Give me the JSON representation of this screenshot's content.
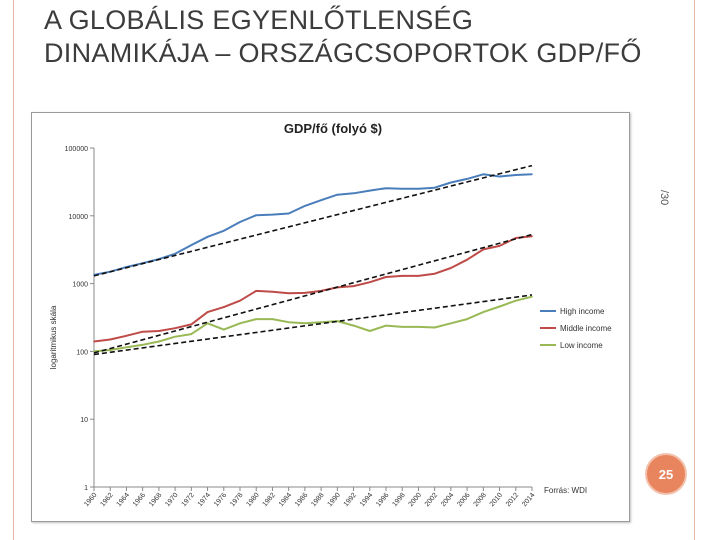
{
  "slide": {
    "title": "A GLOBÁLIS EGYENLŐTLENSÉG DINAMIKÁJA – ORSZÁGCSOPORTOK GDP/FŐ",
    "side_number": "/30",
    "page_number": "25"
  },
  "chart_data": {
    "type": "line",
    "title": "GDP/fő (folyó $)",
    "ylabel": "logaritmikus skála",
    "xlabel": "",
    "yscale": "log",
    "ylim": [
      1,
      100000
    ],
    "yticks": [
      "1",
      "10",
      "100",
      "1000",
      "10000",
      "100000"
    ],
    "xlim": [
      1960,
      2014
    ],
    "xticks": [
      "1960",
      "1962",
      "1964",
      "1966",
      "1968",
      "1970",
      "1972",
      "1974",
      "1976",
      "1978",
      "1980",
      "1982",
      "1984",
      "1986",
      "1988",
      "1990",
      "1992",
      "1994",
      "1996",
      "1998",
      "2000",
      "2002",
      "2004",
      "2006",
      "2008",
      "2010",
      "2012",
      "2014"
    ],
    "source": "Forrás: WDI",
    "legend_position": "right",
    "x": [
      1960,
      1962,
      1964,
      1966,
      1968,
      1970,
      1972,
      1974,
      1976,
      1978,
      1980,
      1982,
      1984,
      1986,
      1988,
      1990,
      1992,
      1994,
      1996,
      1998,
      2000,
      2002,
      2004,
      2006,
      2008,
      2010,
      2012,
      2014
    ],
    "series": [
      {
        "name": "High income",
        "color": "#4a7ebb",
        "values": [
          1350,
          1500,
          1750,
          2000,
          2300,
          2750,
          3700,
          4900,
          6000,
          8100,
          10200,
          10400,
          10800,
          14000,
          17000,
          20500,
          21500,
          23500,
          25500,
          25000,
          25000,
          26000,
          31000,
          35000,
          41000,
          38000,
          40000,
          41000
        ]
      },
      {
        "name": "Middle income",
        "color": "#be4b48",
        "values": [
          140,
          150,
          170,
          195,
          200,
          220,
          250,
          380,
          450,
          560,
          780,
          760,
          720,
          730,
          780,
          880,
          920,
          1050,
          1250,
          1300,
          1300,
          1400,
          1700,
          2250,
          3200,
          3600,
          4700,
          5000
        ]
      },
      {
        "name": "Low income",
        "color": "#98b954",
        "values": [
          100,
          105,
          115,
          125,
          140,
          165,
          180,
          260,
          210,
          260,
          300,
          300,
          270,
          260,
          270,
          280,
          240,
          200,
          240,
          230,
          230,
          225,
          260,
          300,
          380,
          460,
          560,
          640
        ]
      }
    ],
    "trendlines": [
      {
        "from": [
          1960,
          1300
        ],
        "to": [
          2014,
          55000
        ]
      },
      {
        "from": [
          1960,
          95
        ],
        "to": [
          2014,
          5300
        ]
      },
      {
        "from": [
          1960,
          90
        ],
        "to": [
          2014,
          680
        ]
      }
    ]
  }
}
